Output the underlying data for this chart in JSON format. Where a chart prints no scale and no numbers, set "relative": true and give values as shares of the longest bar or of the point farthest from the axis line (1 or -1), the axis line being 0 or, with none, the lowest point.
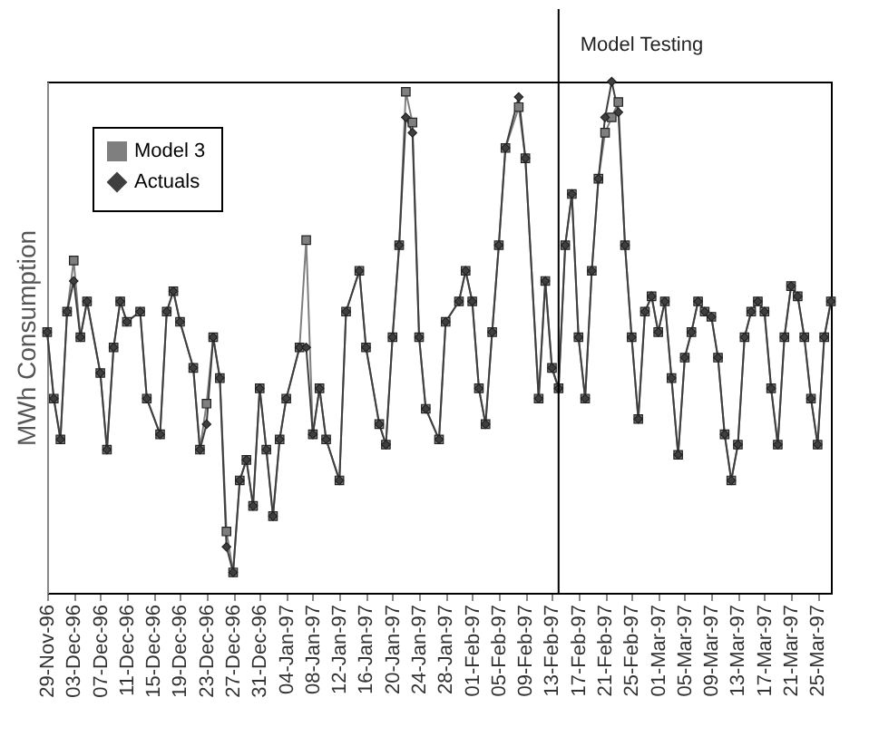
{
  "chart_data": {
    "type": "line",
    "ylabel": "MWh Consumption",
    "relative": true,
    "legend": "top left",
    "x": [
      "1996-11-29",
      "1996-11-30",
      "1996-12-01",
      "1996-12-02",
      "1996-12-03",
      "1996-12-04",
      "1996-12-05",
      "1996-12-07",
      "1996-12-08",
      "1996-12-09",
      "1996-12-10",
      "1996-12-11",
      "1996-12-13",
      "1996-12-14",
      "1996-12-16",
      "1996-12-17",
      "1996-12-18",
      "1996-12-19",
      "1996-12-21",
      "1996-12-22",
      "1996-12-23",
      "1996-12-24",
      "1996-12-25",
      "1996-12-26",
      "1996-12-27",
      "1996-12-28",
      "1996-12-29",
      "1996-12-30",
      "1996-12-31",
      "1997-01-01",
      "1997-01-02",
      "1997-01-03",
      "1997-01-04",
      "1997-01-06",
      "1997-01-07",
      "1997-01-08",
      "1997-01-09",
      "1997-01-10",
      "1997-01-12",
      "1997-01-13",
      "1997-01-15",
      "1997-01-16",
      "1997-01-18",
      "1997-01-19",
      "1997-01-20",
      "1997-01-21",
      "1997-01-22",
      "1997-01-23",
      "1997-01-24",
      "1997-01-25",
      "1997-01-27",
      "1997-01-28",
      "1997-01-30",
      "1997-01-31",
      "1997-02-01",
      "1997-02-02",
      "1997-02-03",
      "1997-02-04",
      "1997-02-05",
      "1997-02-06",
      "1997-02-08",
      "1997-02-09",
      "1997-02-11",
      "1997-02-12",
      "1997-02-13",
      "1997-02-14",
      "1997-02-15",
      "1997-02-16",
      "1997-02-17",
      "1997-02-18",
      "1997-02-19",
      "1997-02-20",
      "1997-02-21",
      "1997-02-22",
      "1997-02-23",
      "1997-02-24",
      "1997-02-25",
      "1997-02-26",
      "1997-02-27",
      "1997-02-28",
      "1997-03-01",
      "1997-03-02",
      "1997-03-03",
      "1997-03-04",
      "1997-03-05",
      "1997-03-06",
      "1997-03-07",
      "1997-03-08",
      "1997-03-09",
      "1997-03-10",
      "1997-03-11",
      "1997-03-12",
      "1997-03-13",
      "1997-03-14",
      "1997-03-15",
      "1997-03-16",
      "1997-03-17",
      "1997-03-18",
      "1997-03-19",
      "1997-03-20",
      "1997-03-21",
      "1997-03-22",
      "1997-03-23",
      "1997-03-24",
      "1997-03-25",
      "1997-03-26",
      "1997-03-27"
    ],
    "xlim": [
      "1996-11-29",
      "1997-03-27"
    ],
    "xticks": [
      {
        "value": "1996-11-29",
        "label": "29-Nov-96"
      },
      {
        "value": "1996-12-03",
        "label": "03-Dec-96"
      },
      {
        "value": "1996-12-07",
        "label": "07-Dec-96"
      },
      {
        "value": "1996-12-11",
        "label": "11-Dec-96"
      },
      {
        "value": "1996-12-15",
        "label": "15-Dec-96"
      },
      {
        "value": "1996-12-19",
        "label": "19-Dec-96"
      },
      {
        "value": "1996-12-23",
        "label": "23-Dec-96"
      },
      {
        "value": "1996-12-27",
        "label": "27-Dec-96"
      },
      {
        "value": "1996-12-31",
        "label": "31-Dec-96"
      },
      {
        "value": "1997-01-04",
        "label": "04-Jan-97"
      },
      {
        "value": "1997-01-08",
        "label": "08-Jan-97"
      },
      {
        "value": "1997-01-12",
        "label": "12-Jan-97"
      },
      {
        "value": "1997-01-16",
        "label": "16-Jan-97"
      },
      {
        "value": "1997-01-20",
        "label": "20-Jan-97"
      },
      {
        "value": "1997-01-24",
        "label": "24-Jan-97"
      },
      {
        "value": "1997-01-28",
        "label": "28-Jan-97"
      },
      {
        "value": "1997-02-01",
        "label": "01-Feb-97"
      },
      {
        "value": "1997-02-05",
        "label": "05-Feb-97"
      },
      {
        "value": "1997-02-09",
        "label": "09-Feb-97"
      },
      {
        "value": "1997-02-13",
        "label": "13-Feb-97"
      },
      {
        "value": "1997-02-17",
        "label": "17-Feb-97"
      },
      {
        "value": "1997-02-21",
        "label": "21-Feb-97"
      },
      {
        "value": "1997-02-25",
        "label": "25-Feb-97"
      },
      {
        "value": "1997-03-01",
        "label": "01-Mar-97"
      },
      {
        "value": "1997-03-05",
        "label": "05-Mar-97"
      },
      {
        "value": "1997-03-09",
        "label": "09-Mar-97"
      },
      {
        "value": "1997-03-13",
        "label": "13-Mar-97"
      },
      {
        "value": "1997-03-17",
        "label": "17-Mar-97"
      },
      {
        "value": "1997-03-21",
        "label": "21-Mar-97"
      },
      {
        "value": "1997-03-25",
        "label": "25-Mar-97"
      }
    ],
    "ref_lines": [
      {
        "axis": "x",
        "value": "1997-02-14",
        "label": "Model Testing",
        "color": "#000000"
      }
    ],
    "series": [
      {
        "name": "Model 3",
        "color": "#7f7f7f",
        "marker": "square",
        "values": [
          0.51,
          0.38,
          0.3,
          0.55,
          0.65,
          0.5,
          0.57,
          0.43,
          0.28,
          0.48,
          0.57,
          0.53,
          0.55,
          0.38,
          0.31,
          0.55,
          0.59,
          0.53,
          0.44,
          0.28,
          0.37,
          0.5,
          0.42,
          0.12,
          0.04,
          0.22,
          0.26,
          0.17,
          0.4,
          0.28,
          0.15,
          0.3,
          0.38,
          0.48,
          0.69,
          0.31,
          0.4,
          0.3,
          0.22,
          0.55,
          0.63,
          0.48,
          0.33,
          0.29,
          0.5,
          0.68,
          0.98,
          0.92,
          0.5,
          0.36,
          0.3,
          0.53,
          0.57,
          0.63,
          0.57,
          0.4,
          0.33,
          0.51,
          0.68,
          0.87,
          0.95,
          0.85,
          0.38,
          0.61,
          0.44,
          0.4,
          0.68,
          0.78,
          0.5,
          0.38,
          0.63,
          0.81,
          0.9,
          0.93,
          0.96,
          0.68,
          0.5,
          0.34,
          0.55,
          0.58,
          0.51,
          0.57,
          0.42,
          0.27,
          0.46,
          0.51,
          0.57,
          0.55,
          0.54,
          0.46,
          0.31,
          0.22,
          0.29,
          0.5,
          0.55,
          0.57,
          0.55,
          0.4,
          0.29,
          0.5,
          0.6,
          0.58,
          0.5,
          0.38,
          0.29,
          0.5,
          0.57
        ]
      },
      {
        "name": "Actuals",
        "color": "#3f3f3f",
        "marker": "diamond",
        "values": [
          0.51,
          0.38,
          0.3,
          0.55,
          0.61,
          0.5,
          0.57,
          0.43,
          0.28,
          0.48,
          0.57,
          0.53,
          0.55,
          0.38,
          0.31,
          0.55,
          0.59,
          0.53,
          0.44,
          0.28,
          0.33,
          0.5,
          0.42,
          0.09,
          0.04,
          0.22,
          0.26,
          0.17,
          0.4,
          0.28,
          0.15,
          0.3,
          0.38,
          0.48,
          0.48,
          0.31,
          0.4,
          0.3,
          0.22,
          0.55,
          0.63,
          0.48,
          0.33,
          0.29,
          0.5,
          0.68,
          0.93,
          0.9,
          0.5,
          0.36,
          0.3,
          0.53,
          0.57,
          0.63,
          0.57,
          0.4,
          0.33,
          0.51,
          0.68,
          0.87,
          0.97,
          0.85,
          0.38,
          0.61,
          0.44,
          0.4,
          0.68,
          0.78,
          0.5,
          0.38,
          0.63,
          0.81,
          0.93,
          1.0,
          0.94,
          0.68,
          0.5,
          0.34,
          0.55,
          0.58,
          0.51,
          0.57,
          0.42,
          0.27,
          0.46,
          0.51,
          0.57,
          0.55,
          0.54,
          0.46,
          0.31,
          0.22,
          0.29,
          0.5,
          0.55,
          0.57,
          0.55,
          0.4,
          0.29,
          0.5,
          0.6,
          0.58,
          0.5,
          0.38,
          0.29,
          0.5,
          0.57
        ]
      }
    ]
  }
}
